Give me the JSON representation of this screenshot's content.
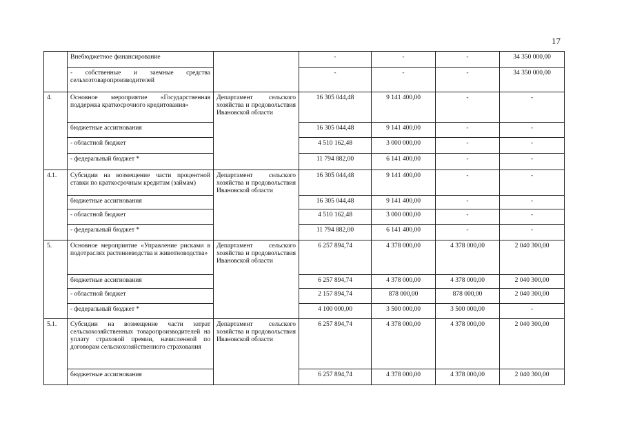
{
  "page_number": "17",
  "dept": "Департамент сельского хозяйства и продовольствия Ивановской области",
  "rows": [
    {
      "num": "",
      "name": "Внебюджетное финансирование",
      "c": [
        "-",
        "-",
        "-",
        "34 350 000,00"
      ]
    },
    {
      "num": "",
      "name": "- собственные и заемные средства сельхозтоваропроизводителей",
      "c": [
        "-",
        "-",
        "-",
        "34 350 000,00"
      ]
    },
    {
      "num": "4.",
      "name": "Основное мероприятие «Государственная поддержка краткосрочного кредитования»",
      "c": [
        "16 305 044,48",
        "9 141 400,00",
        "-",
        "-"
      ]
    },
    {
      "num": "",
      "name": "бюджетные ассигнования",
      "c": [
        "16 305 044,48",
        "9 141 400,00",
        "-",
        "-"
      ]
    },
    {
      "num": "",
      "name": "- областной бюджет",
      "c": [
        "4 510 162,48",
        "3 000 000,00",
        "-",
        "-"
      ]
    },
    {
      "num": "",
      "name": "- федеральный бюджет *",
      "c": [
        "11 794 882,00",
        "6 141 400,00",
        "-",
        "-"
      ]
    },
    {
      "num": "4.1.",
      "name": "Субсидии на возмещение части процентной ставки по краткосрочным кредитам (займам)",
      "c": [
        "16 305 044,48",
        "9 141 400,00",
        "-",
        "-"
      ]
    },
    {
      "num": "",
      "name": "бюджетные ассигнования",
      "c": [
        "16 305 044,48",
        "9 141 400,00",
        "-",
        "-"
      ]
    },
    {
      "num": "",
      "name": "- областной бюджет",
      "c": [
        "4 510 162,48",
        "3 000 000,00",
        "-",
        "-"
      ]
    },
    {
      "num": "",
      "name": "- федеральный бюджет *",
      "c": [
        "11 794 882,00",
        "6 141 400,00",
        "-",
        "-"
      ]
    },
    {
      "num": "5.",
      "name": "Основное мероприятие «Управление рисками в подотраслях растениеводства и животноводства»",
      "c": [
        "6 257 894,74",
        "4 378 000,00",
        "4 378 000,00",
        "2 040 300,00"
      ]
    },
    {
      "num": "",
      "name": "бюджетные ассигнования",
      "c": [
        "6 257 894,74",
        "4 378 000,00",
        "4 378 000,00",
        "2 040 300,00"
      ]
    },
    {
      "num": "",
      "name": "- областной бюджет",
      "c": [
        "2 157 894,74",
        "878 000,00",
        "878 000,00",
        "2 040 300,00"
      ]
    },
    {
      "num": "",
      "name": "- федеральный бюджет *",
      "c": [
        "4 100 000,00",
        "3 500 000,00",
        "3 500 000,00",
        "-"
      ]
    },
    {
      "num": "5.1.",
      "name": "Субсидии на возмещение части затрат сельскохозяйственных товаропроизводителей на уплату страховой премии, начисленной по договорам сельскохозяйственного страхования",
      "c": [
        "6 257 894,74",
        "4 378 000,00",
        "4 378 000,00",
        "2 040 300,00"
      ]
    },
    {
      "num": "",
      "name": "бюджетные ассигнования",
      "c": [
        "6 257 894,74",
        "4 378 000,00",
        "4 378 000,00",
        "2 040 300,00"
      ]
    }
  ]
}
